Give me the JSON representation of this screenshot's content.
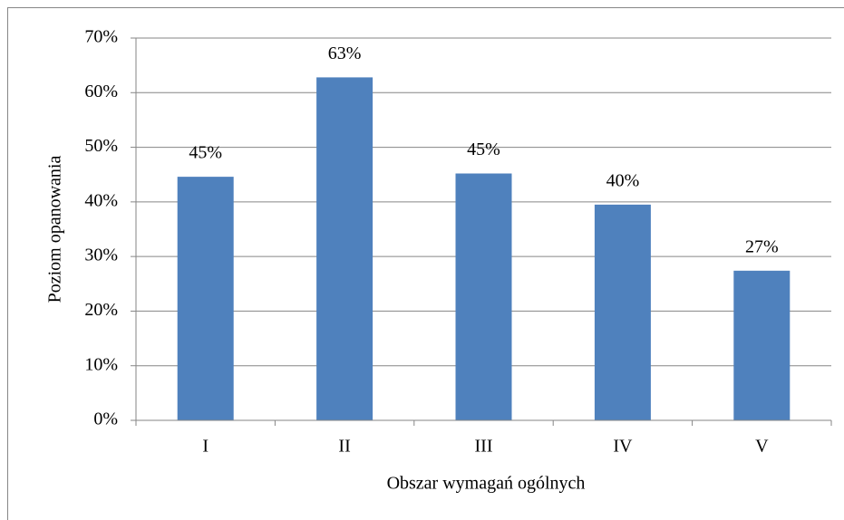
{
  "chart_data": {
    "type": "bar",
    "categories": [
      "I",
      "II",
      "III",
      "IV",
      "V"
    ],
    "values": [
      44.6,
      62.8,
      45.2,
      39.5,
      27.4
    ],
    "value_labels": [
      "45%",
      "63%",
      "45%",
      "40%",
      "27%"
    ],
    "color": "#4f81bd",
    "x_label": "Obszar wymagań ogólnych",
    "y_label": "Poziom opanowania",
    "ylim": [
      0,
      70
    ],
    "yticks": [
      {
        "value": 0,
        "label": "0%"
      },
      {
        "value": 10,
        "label": "10%"
      },
      {
        "value": 20,
        "label": "20%"
      },
      {
        "value": 30,
        "label": "30%"
      },
      {
        "value": 40,
        "label": "40%"
      },
      {
        "value": 50,
        "label": "50%"
      },
      {
        "value": 60,
        "label": "60%"
      },
      {
        "value": 70,
        "label": "70%"
      }
    ],
    "grid": true
  }
}
